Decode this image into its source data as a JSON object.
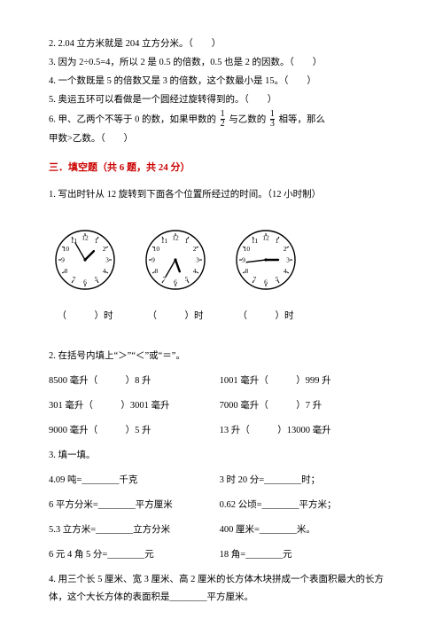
{
  "tf": {
    "q2": "2. 2.04 立方米就是 204 立方分米。（　　）",
    "q3": "3. 因为 2÷0.5=4，所以 2 是 0.5 的倍数，0.5 也是 2 的因数。（　　）",
    "q4": "4. 一个数既是 5 的倍数又是 3 的倍数，这个数最小是 15。（　　）",
    "q5": "5. 奥运五环可以看做是一个圆经过旋转得到的。（　　）",
    "q6a": "6. 甲、乙两个不等于 0 的数，如果甲数的",
    "q6b": "与乙数的",
    "q6c": "相等，那么",
    "q6d": "甲数>乙数。（　　）"
  },
  "frac1": {
    "n": "1",
    "d": "2"
  },
  "frac2": {
    "n": "1",
    "d": "3"
  },
  "section3": "三．填空题（共 6 题，共 24 分）",
  "fb": {
    "q1": "1. 写出时针从 12 旋转到下面各个位置所经过的时间。（12 小时制）",
    "clockLabel": "（　　　）时",
    "q2_lead": "2. 在括号内填上“＞”“＜”或“＝”。",
    "q2_r1a": "8500 毫升（　　　）8 升",
    "q2_r1b": "1001 毫升（　　　）999 升",
    "q2_r2a": "301 毫升（　　　）3001 毫升",
    "q2_r2b": "7000 毫升（　　　）7 升",
    "q2_r3a": "9000 毫升（　　　）5 升",
    "q2_r3b": "13 升（　　　）13000 毫升",
    "q3_lead": "3. 填一填。",
    "q3_r1a": "4.09 吨=________千克",
    "q3_r1b": "3 时 20 分=________时；",
    "q3_r2a": "6 平方分米=________平方厘米",
    "q3_r2b": "0.62 公顷=________平方米；",
    "q3_r3a": "5.3 立方米=________立方分米",
    "q3_r3b": "400 厘米=________米。",
    "q3_r4a": "6 元 4 角 5 分=________元",
    "q3_r4b": "18 角=________元",
    "q4": "4. 用三个长 5 厘米、宽 3 厘米、高 2 厘米的长方体木块拼成一个表面积最大的长方体，这个大长方体的表面积是________平方厘米。"
  },
  "clocks": {
    "radius": 33,
    "numberRadius": 25,
    "tickInner": 27,
    "tickOuter": 30,
    "hourLen": 14,
    "minLen": 22,
    "stroke": "#000",
    "hands": [
      {
        "hourAngle": 45,
        "minAngle": 330
      },
      {
        "hourAngle": 160,
        "minAngle": 210
      },
      {
        "hourAngle": 90,
        "minAngle": 263
      }
    ]
  }
}
